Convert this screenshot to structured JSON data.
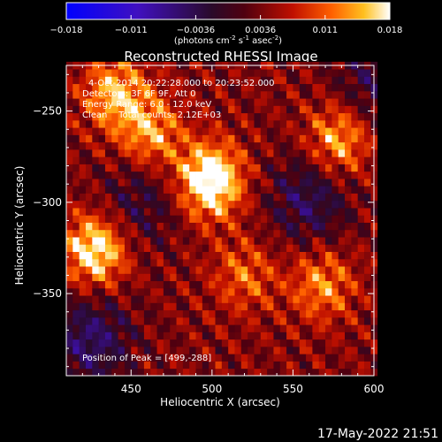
{
  "chart_data": {
    "type": "heatmap",
    "title": "Reconstructed RHESSI Image",
    "xlabel": "Heliocentric X (arcsec)",
    "ylabel": "Heliocentric Y (arcsec)",
    "xlim": [
      410,
      600
    ],
    "ylim": [
      -395,
      -225
    ],
    "x_ticks": [
      450,
      500,
      550,
      600
    ],
    "y_ticks": [
      -250,
      -300,
      -350
    ],
    "colorbar": {
      "ticks": [
        "-0.018",
        "-0.011",
        "-0.0036",
        "0.0036",
        "0.011",
        "0.018"
      ],
      "range": [
        -0.018,
        0.018
      ],
      "unit_main": "(photons cm",
      "unit_sup1": "-2",
      "unit_mid": " s",
      "unit_sup2": "-1",
      "unit_end": " asec",
      "unit_sup3": "-2",
      "unit_close": ")"
    },
    "annotations": {
      "time": "4-Oct-2014 20:22:28.000 to 20:23:52.000",
      "detectors": "Detectors: 3F 6F 9F, Att 0",
      "energy": "Energy Range: 6.0 - 12.0 keV",
      "clean": "Clean    Total counts: 2.12E+03",
      "peak": "Position of Peak = [499,-288]"
    },
    "sources": [
      {
        "x": 499,
        "y": -288,
        "peak": 0.018
      },
      {
        "x": 428,
        "y": -326,
        "peak": 0.015
      },
      {
        "x": 440,
        "y": -240,
        "peak": 0.011
      },
      {
        "x": 462,
        "y": -262,
        "peak": 0.01
      },
      {
        "x": 578,
        "y": -266,
        "peak": 0.011
      },
      {
        "x": 568,
        "y": -345,
        "peak": 0.009
      },
      {
        "x": 520,
        "y": -340,
        "peak": 0.007
      }
    ],
    "negative_regions": [
      {
        "x": 425,
        "y": -375,
        "depth": -0.009
      },
      {
        "x": 560,
        "y": -298,
        "depth": -0.008
      },
      {
        "x": 455,
        "y": -300,
        "depth": -0.006
      },
      {
        "x": 600,
        "y": -235,
        "depth": -0.006
      }
    ]
  },
  "footer": {
    "date": "17-May-2022 21:51"
  }
}
